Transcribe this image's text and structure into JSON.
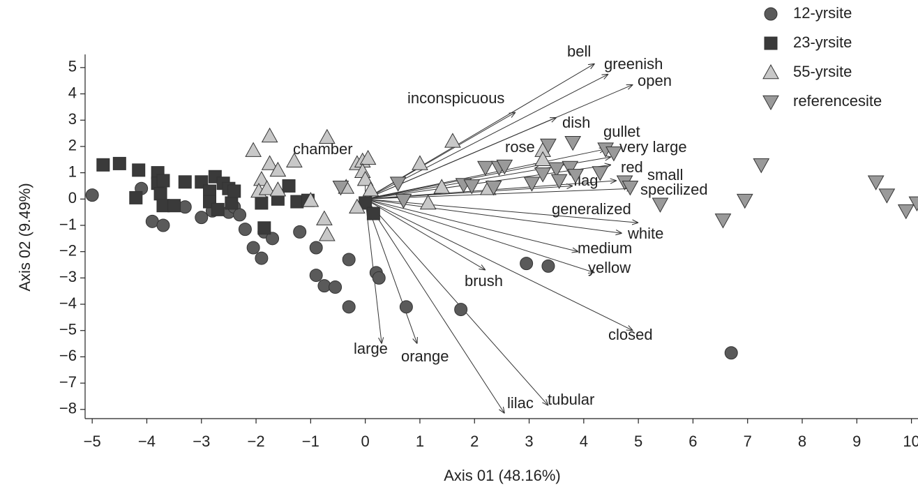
{
  "chart_data": {
    "type": "scatter",
    "x_label": "Axis 01 (48.16%)",
    "y_label": "Axis 02 (9.49%)",
    "xlim": [
      -5.13,
      10.12
    ],
    "ylim": [
      -8.35,
      5.5
    ],
    "xticks": [
      {
        "value": -5,
        "label": "−5"
      },
      {
        "value": -4,
        "label": "−4"
      },
      {
        "value": -3,
        "label": "−3"
      },
      {
        "value": -2,
        "label": "−2"
      },
      {
        "value": -1,
        "label": "−1"
      },
      0,
      1,
      2,
      3,
      4,
      5,
      6,
      7,
      8,
      9,
      10
    ],
    "yticks": [
      {
        "value": -8,
        "label": "−8"
      },
      {
        "value": -7,
        "label": "−7"
      },
      {
        "value": -6,
        "label": "−6"
      },
      {
        "value": -5,
        "label": "−5"
      },
      {
        "value": -4,
        "label": "−4"
      },
      {
        "value": -3,
        "label": "−3"
      },
      {
        "value": -2,
        "label": "−2"
      },
      {
        "value": -1,
        "label": "−1"
      },
      0,
      1,
      2,
      3,
      4,
      5
    ],
    "legend": "top-right",
    "series": [
      {
        "name": "12-yrsite",
        "marker": "circle",
        "color": "#5a5a5a",
        "x": [
          -5.0,
          -4.1,
          -3.9,
          -3.7,
          -3.3,
          -3.0,
          -2.8,
          -2.5,
          -2.4,
          -2.3,
          -2.2,
          -2.05,
          -1.9,
          -1.85,
          -1.7,
          -1.2,
          -0.9,
          -0.9,
          -0.75,
          -0.55,
          -0.3,
          -0.3,
          0.2,
          0.25,
          0.75,
          1.75,
          2.95,
          3.35,
          6.7
        ],
        "y": [
          0.15,
          0.4,
          -0.85,
          -1.0,
          -0.3,
          -0.7,
          -0.45,
          -0.5,
          -0.3,
          -0.6,
          -1.15,
          -1.85,
          -2.25,
          -1.25,
          -1.5,
          -1.25,
          -1.85,
          -2.9,
          -3.3,
          -3.35,
          -2.3,
          -4.1,
          -2.8,
          -3.0,
          -4.1,
          -4.2,
          -2.45,
          -2.55,
          -5.85
        ]
      },
      {
        "name": "23-yrsite",
        "marker": "square",
        "color": "#3a3a3a",
        "x": [
          -4.8,
          -4.5,
          -4.15,
          -4.2,
          -3.8,
          -3.8,
          -3.75,
          -3.7,
          -3.7,
          -3.5,
          -3.3,
          -3.0,
          -2.85,
          -2.85,
          -2.75,
          -2.7,
          -2.6,
          -2.5,
          -2.45,
          -2.4,
          -1.9,
          -1.85,
          -1.6,
          -1.4,
          -1.25,
          -1.05,
          0.0,
          0.15
        ],
        "y": [
          1.3,
          1.35,
          1.1,
          0.05,
          1.0,
          0.6,
          0.2,
          0.7,
          -0.25,
          -0.25,
          0.65,
          0.65,
          0.3,
          -0.1,
          0.85,
          -0.4,
          0.6,
          0.4,
          -0.15,
          0.3,
          -0.15,
          -1.1,
          0.0,
          0.5,
          -0.1,
          -0.05,
          -0.15,
          -0.55
        ]
      },
      {
        "name": "55-yrsite",
        "marker": "triangle-up",
        "color": "#c8c8c8",
        "x": [
          -2.05,
          -1.75,
          -1.75,
          -1.6,
          -1.9,
          -1.95,
          -1.8,
          -1.6,
          -1.3,
          -1.0,
          -0.7,
          -0.75,
          -0.7,
          -0.35,
          -0.15,
          -0.05,
          0.05,
          -0.05,
          0.0,
          0.1,
          -0.15,
          1.0,
          1.15,
          1.4,
          1.6,
          2.25,
          3.25,
          3.25
        ],
        "y": [
          1.85,
          2.4,
          1.35,
          1.1,
          0.75,
          0.3,
          0.4,
          0.35,
          1.45,
          -0.05,
          2.35,
          -0.75,
          -1.35,
          0.45,
          1.35,
          1.45,
          1.55,
          1.05,
          0.75,
          0.35,
          -0.3,
          1.35,
          -0.15,
          0.45,
          2.2,
          0.4,
          1.85,
          1.5
        ]
      },
      {
        "name": "referencesite",
        "marker": "triangle-down",
        "color": "#9a9a9a",
        "x": [
          -0.45,
          0.6,
          0.7,
          1.8,
          1.95,
          2.2,
          2.35,
          2.45,
          2.55,
          3.05,
          3.35,
          3.25,
          3.5,
          3.75,
          3.8,
          3.55,
          3.85,
          4.3,
          4.4,
          4.55,
          4.75,
          4.85,
          5.4,
          6.55,
          6.95,
          7.25,
          9.35,
          9.55,
          9.9,
          10.1
        ],
        "y": [
          0.45,
          0.6,
          -0.05,
          0.55,
          0.5,
          1.2,
          0.45,
          1.2,
          1.25,
          0.6,
          2.05,
          0.95,
          1.15,
          1.2,
          2.15,
          0.7,
          0.9,
          1.0,
          1.9,
          1.75,
          0.65,
          0.45,
          -0.2,
          -0.8,
          -0.05,
          1.3,
          0.65,
          0.15,
          -0.45,
          -0.15
        ]
      }
    ],
    "vectors": [
      {
        "name": "bell",
        "x": 4.2,
        "y": 5.15
      },
      {
        "name": "greenish",
        "x": 4.45,
        "y": 4.75
      },
      {
        "name": "open",
        "x": 4.9,
        "y": 4.35
      },
      {
        "name": "inconspicuous",
        "x": 2.75,
        "y": 3.3
      },
      {
        "name": "dish",
        "x": 3.5,
        "y": 3.1
      },
      {
        "name": "gullet",
        "x": 4.4,
        "y": 1.9
      },
      {
        "name": "very large",
        "x": 4.5,
        "y": 1.6
      },
      {
        "name": "rose",
        "x": 3.2,
        "y": 1.3
      },
      {
        "name": "chamber",
        "x": 0.0,
        "y": 0.9
      },
      {
        "name": "red",
        "x": 4.5,
        "y": 1.3
      },
      {
        "name": "small",
        "x": 4.6,
        "y": 0.7
      },
      {
        "name": "flag",
        "x": 3.8,
        "y": 0.5
      },
      {
        "name": "specilized",
        "x": 4.9,
        "y": 0.4
      },
      {
        "name": "generalized",
        "x": 5.0,
        "y": -0.9
      },
      {
        "name": "white",
        "x": 4.7,
        "y": -1.3
      },
      {
        "name": "medium",
        "x": 3.9,
        "y": -2.0
      },
      {
        "name": "yellow",
        "x": 4.2,
        "y": -2.8
      },
      {
        "name": "brush",
        "x": 2.2,
        "y": -2.7
      },
      {
        "name": "closed",
        "x": 4.9,
        "y": -5.0
      },
      {
        "name": "large",
        "x": 0.3,
        "y": -5.5
      },
      {
        "name": "orange",
        "x": 0.95,
        "y": -5.5
      },
      {
        "name": "lilac",
        "x": 2.55,
        "y": -8.15
      },
      {
        "name": "tubular",
        "x": 3.35,
        "y": -7.85
      }
    ]
  }
}
